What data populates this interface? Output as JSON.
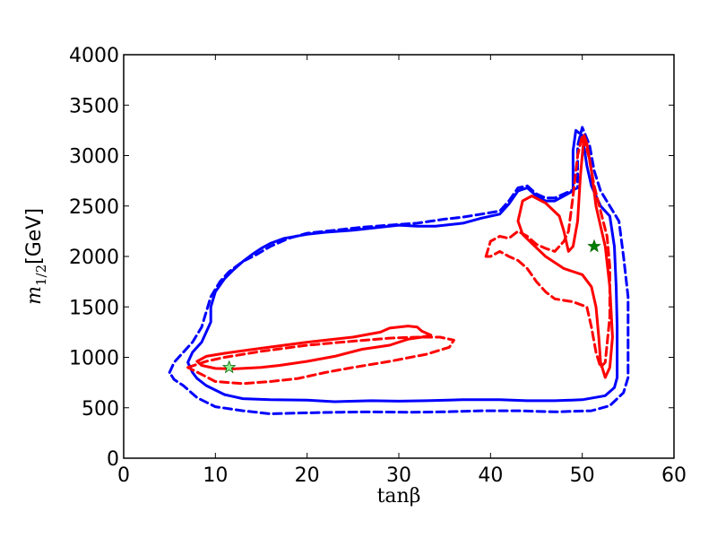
{
  "chart_data": {
    "type": "line",
    "title": "",
    "xlabel": "tanβ",
    "ylabel": "m1/2 [GeV]",
    "ylabel_parts": {
      "symbol": "m",
      "subscript": "1/2",
      "unit": "[GeV]"
    },
    "xlim": [
      0,
      60
    ],
    "ylim": [
      0,
      4000
    ],
    "x_ticks": [
      0,
      10,
      20,
      30,
      40,
      50,
      60
    ],
    "y_ticks": [
      0,
      500,
      1000,
      1500,
      2000,
      2500,
      3000,
      3500,
      4000
    ],
    "grid": false,
    "legend": "none",
    "colors": {
      "blue": "#0000ff",
      "red": "#ff0000",
      "green": "#008000",
      "light_green": "#90ee90"
    },
    "contours": [
      {
        "color": "#0000ff",
        "style": "solid",
        "points": [
          [
            7.5,
            850
          ],
          [
            7,
            950
          ],
          [
            7.5,
            1050
          ],
          [
            8.5,
            1150
          ],
          [
            9,
            1250
          ],
          [
            9.5,
            1350
          ],
          [
            9.5,
            1500
          ],
          [
            10,
            1650
          ],
          [
            11,
            1780
          ],
          [
            12,
            1870
          ],
          [
            13,
            1950
          ],
          [
            14,
            2020
          ],
          [
            15,
            2080
          ],
          [
            16,
            2130
          ],
          [
            17.5,
            2180
          ],
          [
            20,
            2220
          ],
          [
            22,
            2240
          ],
          [
            25,
            2260
          ],
          [
            28,
            2290
          ],
          [
            30,
            2310
          ],
          [
            32,
            2300
          ],
          [
            34,
            2300
          ],
          [
            37,
            2330
          ],
          [
            39,
            2380
          ],
          [
            41,
            2420
          ],
          [
            42,
            2520
          ],
          [
            43,
            2650
          ],
          [
            44,
            2680
          ],
          [
            45,
            2600
          ],
          [
            46,
            2550
          ],
          [
            47,
            2550
          ],
          [
            48,
            2600
          ],
          [
            49,
            2650
          ],
          [
            49,
            3050
          ],
          [
            49.3,
            3250
          ],
          [
            50,
            3200
          ],
          [
            50.5,
            2900
          ],
          [
            51,
            2700
          ],
          [
            51.5,
            2600
          ],
          [
            52,
            2500
          ],
          [
            53,
            2400
          ],
          [
            53.5,
            2100
          ],
          [
            53.7,
            1700
          ],
          [
            53.8,
            1300
          ],
          [
            53.8,
            800
          ],
          [
            53.5,
            700
          ],
          [
            52.5,
            620
          ],
          [
            50,
            580
          ],
          [
            47,
            570
          ],
          [
            44,
            570
          ],
          [
            41,
            580
          ],
          [
            37,
            580
          ],
          [
            33,
            570
          ],
          [
            30,
            565
          ],
          [
            27,
            570
          ],
          [
            23,
            560
          ],
          [
            20,
            575
          ],
          [
            16,
            580
          ],
          [
            13,
            590
          ],
          [
            11,
            630
          ],
          [
            9,
            720
          ],
          [
            8,
            790
          ],
          [
            7.5,
            850
          ]
        ]
      },
      {
        "color": "#0000ff",
        "style": "dashed",
        "points": [
          [
            5,
            850
          ],
          [
            5.5,
            950
          ],
          [
            6.5,
            1050
          ],
          [
            7.5,
            1150
          ],
          [
            8.5,
            1300
          ],
          [
            9,
            1450
          ],
          [
            9.5,
            1600
          ],
          [
            10.5,
            1750
          ],
          [
            11.5,
            1850
          ],
          [
            13,
            1950
          ],
          [
            14.5,
            2020
          ],
          [
            16,
            2100
          ],
          [
            18,
            2180
          ],
          [
            20,
            2230
          ],
          [
            23,
            2260
          ],
          [
            26,
            2290
          ],
          [
            29,
            2310
          ],
          [
            32,
            2330
          ],
          [
            35,
            2370
          ],
          [
            37,
            2390
          ],
          [
            39,
            2420
          ],
          [
            41,
            2450
          ],
          [
            42,
            2550
          ],
          [
            43,
            2680
          ],
          [
            44,
            2700
          ],
          [
            45,
            2620
          ],
          [
            46,
            2580
          ],
          [
            47,
            2580
          ],
          [
            48,
            2620
          ],
          [
            49.5,
            2680
          ],
          [
            49.5,
            3100
          ],
          [
            50,
            3280
          ],
          [
            50.8,
            3100
          ],
          [
            51.3,
            2850
          ],
          [
            52,
            2650
          ],
          [
            53,
            2500
          ],
          [
            54,
            2350
          ],
          [
            54.5,
            2000
          ],
          [
            55,
            1600
          ],
          [
            55,
            1200
          ],
          [
            55,
            800
          ],
          [
            54.5,
            650
          ],
          [
            53,
            520
          ],
          [
            51,
            470
          ],
          [
            47,
            460
          ],
          [
            43,
            470
          ],
          [
            39,
            470
          ],
          [
            35,
            460
          ],
          [
            31,
            455
          ],
          [
            27,
            460
          ],
          [
            23,
            455
          ],
          [
            20,
            450
          ],
          [
            16,
            440
          ],
          [
            13,
            470
          ],
          [
            10,
            510
          ],
          [
            8,
            600
          ],
          [
            6.5,
            720
          ],
          [
            5.5,
            780
          ],
          [
            5,
            850
          ]
        ]
      },
      {
        "color": "#ff0000",
        "style": "solid",
        "points": [
          [
            8,
            960
          ],
          [
            9,
            1010
          ],
          [
            11,
            1040
          ],
          [
            15,
            1090
          ],
          [
            20,
            1150
          ],
          [
            25,
            1200
          ],
          [
            28,
            1250
          ],
          [
            29,
            1290
          ],
          [
            31,
            1310
          ],
          [
            32,
            1300
          ],
          [
            32.5,
            1260
          ],
          [
            33,
            1240
          ],
          [
            33.5,
            1220
          ],
          [
            32.5,
            1200
          ],
          [
            31,
            1180
          ],
          [
            29,
            1120
          ],
          [
            26,
            1080
          ],
          [
            23,
            1010
          ],
          [
            20,
            960
          ],
          [
            17,
            920
          ],
          [
            15,
            900
          ],
          [
            12,
            885
          ],
          [
            10,
            890
          ],
          [
            8.5,
            920
          ],
          [
            8,
            960
          ]
        ]
      },
      {
        "color": "#ff0000",
        "style": "dashed",
        "points": [
          [
            7,
            900
          ],
          [
            9,
            960
          ],
          [
            11,
            1000
          ],
          [
            15,
            1060
          ],
          [
            20,
            1120
          ],
          [
            25,
            1160
          ],
          [
            29,
            1190
          ],
          [
            32,
            1200
          ],
          [
            34.5,
            1200
          ],
          [
            36,
            1170
          ],
          [
            35.5,
            1100
          ],
          [
            33,
            1030
          ],
          [
            29,
            960
          ],
          [
            25,
            900
          ],
          [
            22,
            850
          ],
          [
            19,
            790
          ],
          [
            16,
            760
          ],
          [
            13,
            740
          ],
          [
            10,
            760
          ],
          [
            8.5,
            830
          ],
          [
            7,
            900
          ]
        ]
      },
      {
        "color": "#ff0000",
        "style": "solid",
        "points": [
          [
            43,
            2350
          ],
          [
            43.5,
            2550
          ],
          [
            44.5,
            2600
          ],
          [
            46,
            2530
          ],
          [
            47.5,
            2400
          ],
          [
            48,
            2250
          ],
          [
            48.5,
            2050
          ],
          [
            49,
            2100
          ],
          [
            49.5,
            2350
          ],
          [
            49.8,
            2800
          ],
          [
            50.2,
            3200
          ],
          [
            50.5,
            3120
          ],
          [
            51,
            2850
          ],
          [
            51.5,
            2500
          ],
          [
            52,
            2300
          ],
          [
            52.5,
            2100
          ],
          [
            53,
            1700
          ],
          [
            53.3,
            1200
          ],
          [
            53,
            900
          ],
          [
            52.5,
            800
          ],
          [
            52,
            950
          ],
          [
            51.8,
            1200
          ],
          [
            51.5,
            1500
          ],
          [
            51,
            1700
          ],
          [
            50,
            1820
          ],
          [
            48,
            1880
          ],
          [
            46,
            2000
          ],
          [
            44.5,
            2130
          ],
          [
            43.5,
            2220
          ],
          [
            43,
            2350
          ]
        ]
      },
      {
        "color": "#ff0000",
        "style": "dashed",
        "points": [
          [
            39.5,
            2000
          ],
          [
            40,
            2150
          ],
          [
            41,
            2200
          ],
          [
            42,
            2180
          ],
          [
            43,
            2250
          ],
          [
            44,
            2200
          ],
          [
            45,
            2120
          ],
          [
            46,
            2080
          ],
          [
            47,
            2050
          ],
          [
            48,
            2150
          ],
          [
            48.5,
            2250
          ],
          [
            49,
            2600
          ],
          [
            49.5,
            3000
          ],
          [
            50,
            3200
          ],
          [
            50.7,
            3000
          ],
          [
            51.3,
            2700
          ],
          [
            52,
            2450
          ],
          [
            52.7,
            2200
          ],
          [
            53,
            1900
          ],
          [
            53,
            1400
          ],
          [
            52.5,
            950
          ],
          [
            52,
            900
          ],
          [
            51.5,
            1050
          ],
          [
            51,
            1300
          ],
          [
            50.5,
            1500
          ],
          [
            49,
            1550
          ],
          [
            47,
            1580
          ],
          [
            46,
            1650
          ],
          [
            45,
            1750
          ],
          [
            44,
            1880
          ],
          [
            43,
            1960
          ],
          [
            42,
            2000
          ],
          [
            41,
            2050
          ],
          [
            40,
            2000
          ],
          [
            39.5,
            2000
          ]
        ]
      }
    ],
    "markers": [
      {
        "x": 11.5,
        "y": 900,
        "shape": "star",
        "fill": "#90ee90"
      },
      {
        "x": 51.3,
        "y": 2100,
        "shape": "star",
        "fill": "#008000"
      }
    ]
  }
}
